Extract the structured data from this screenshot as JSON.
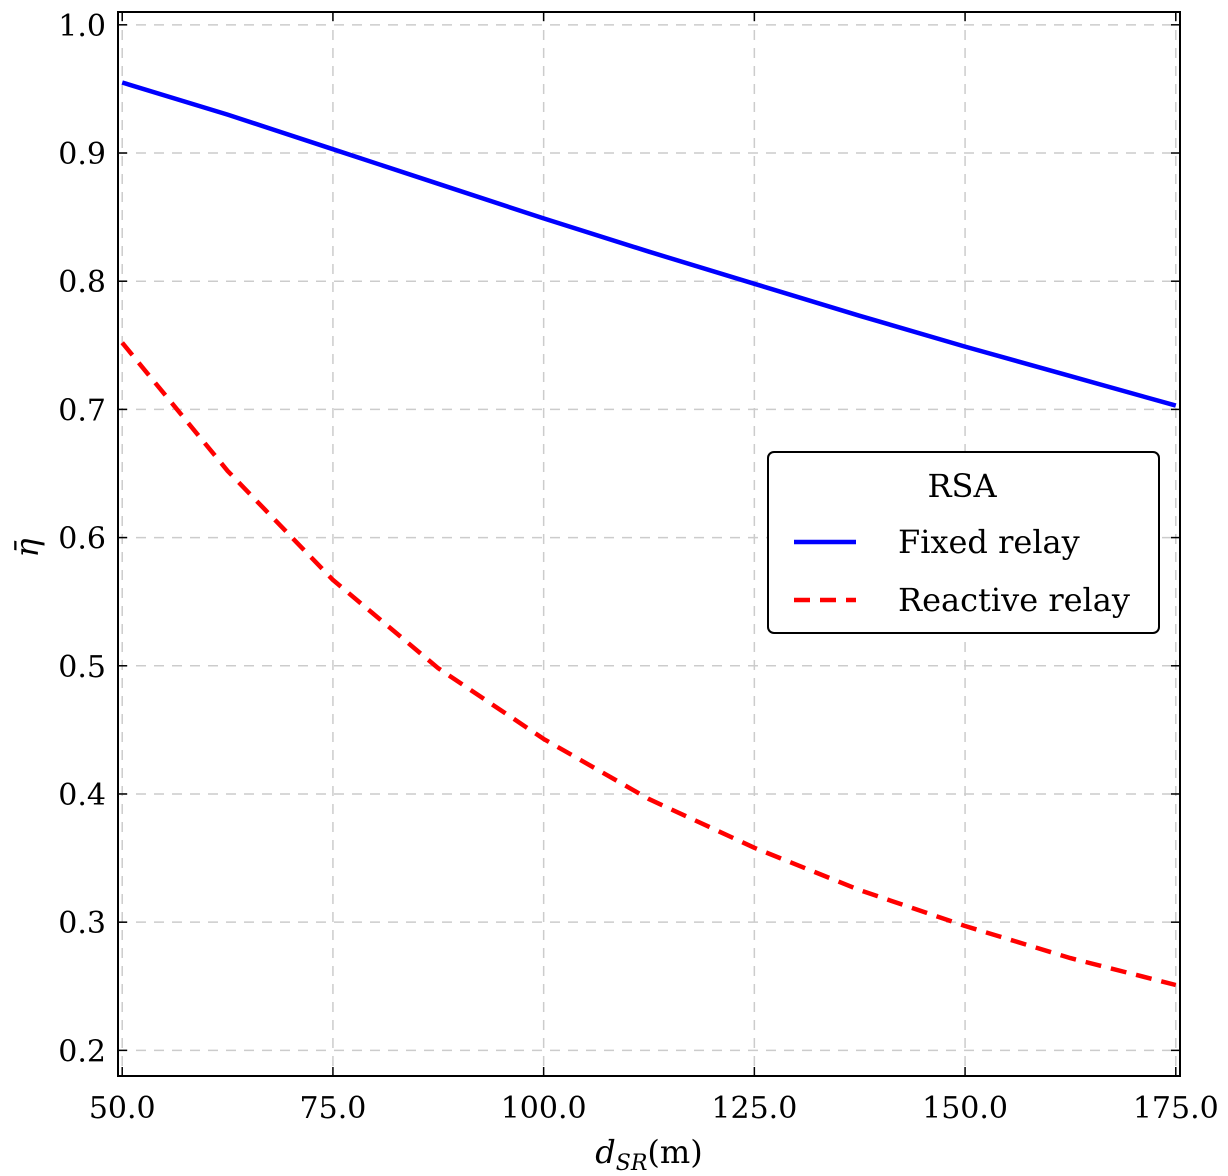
{
  "chart_data": {
    "type": "line",
    "xlabel": "d_SR(m)",
    "xlabel_main": "d",
    "xlabel_sub": "SR",
    "xlabel_unit": "(m)",
    "ylabel": "η̄",
    "xlim": [
      49.5,
      175.5
    ],
    "ylim": [
      0.18,
      1.01
    ],
    "x_ticks": [
      50,
      75,
      100,
      125,
      150,
      175
    ],
    "x_tick_labels": [
      "50.0",
      "75.0",
      "100.0",
      "125.0",
      "150.0",
      "175.0"
    ],
    "y_ticks": [
      0.2,
      0.3,
      0.4,
      0.5,
      0.6,
      0.7,
      0.8,
      0.9,
      1.0
    ],
    "y_tick_labels": [
      "0.2",
      "0.3",
      "0.4",
      "0.5",
      "0.6",
      "0.7",
      "0.8",
      "0.9",
      "1.0"
    ],
    "grid": true,
    "legend": {
      "title": "RSA",
      "placement": "center-right"
    },
    "series": [
      {
        "name": "Fixed relay",
        "color": "#0000ff",
        "style": "solid",
        "x": [
          50,
          62.5,
          75,
          87.5,
          100,
          112.5,
          125,
          137.5,
          150,
          162.5,
          175
        ],
        "y": [
          0.955,
          0.93,
          0.903,
          0.876,
          0.849,
          0.823,
          0.798,
          0.773,
          0.749,
          0.726,
          0.703
        ]
      },
      {
        "name": "Reactive relay",
        "color": "#ff0000",
        "style": "dashed",
        "x": [
          50,
          62.5,
          75,
          87.5,
          100,
          112.5,
          125,
          137.5,
          150,
          162.5,
          175
        ],
        "y": [
          0.752,
          0.652,
          0.567,
          0.498,
          0.443,
          0.396,
          0.358,
          0.325,
          0.297,
          0.272,
          0.251
        ]
      }
    ]
  }
}
